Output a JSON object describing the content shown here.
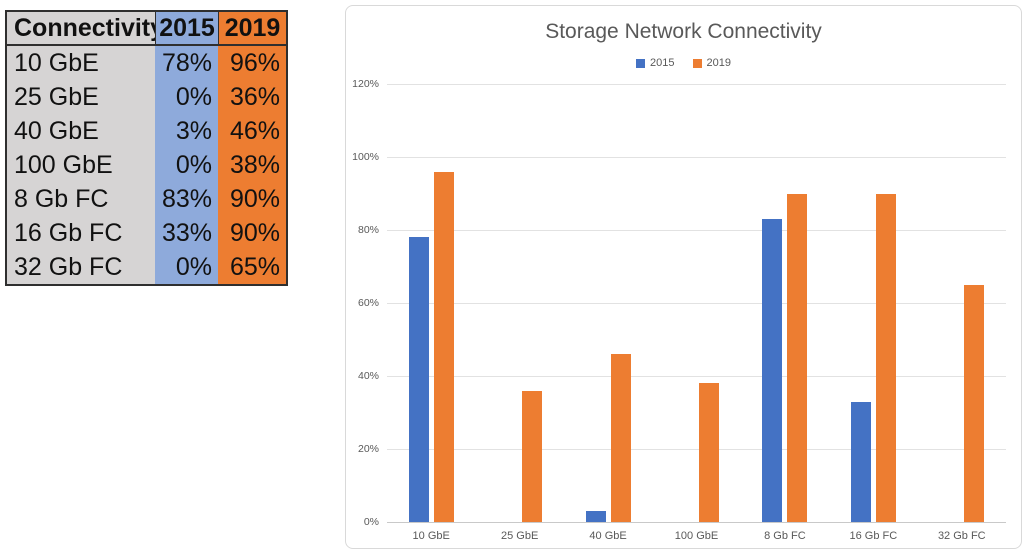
{
  "table": {
    "header": {
      "connectivity": "Connectivity",
      "y2015": "2015",
      "y2019": "2019"
    },
    "rows": [
      {
        "label": "10 GbE",
        "v2015": "78%",
        "v2019": "96%"
      },
      {
        "label": "25 GbE",
        "v2015": "0%",
        "v2019": "36%"
      },
      {
        "label": "40 GbE",
        "v2015": "3%",
        "v2019": "46%"
      },
      {
        "label": "100 GbE",
        "v2015": "0%",
        "v2019": "38%"
      },
      {
        "label": "8 Gb FC",
        "v2015": "83%",
        "v2019": "90%"
      },
      {
        "label": "16 Gb FC",
        "v2015": "33%",
        "v2019": "90%"
      },
      {
        "label": "32 Gb FC",
        "v2015": "0%",
        "v2019": "65%"
      }
    ],
    "colors": {
      "label_col_bg": "#d6d4d4",
      "col_2015_bg": "#8eaadb",
      "col_2019_bg": "#ed7d31",
      "border": "#2f2f2f",
      "text": "#111111"
    }
  },
  "chart_data": {
    "type": "bar",
    "title": "Storage Network Connectivity",
    "categories": [
      "10 GbE",
      "25 GbE",
      "40 GbE",
      "100 GbE",
      "8 Gb FC",
      "16 Gb FC",
      "32 Gb FC"
    ],
    "series": [
      {
        "name": "2015",
        "color": "#4472c4",
        "values": [
          78,
          0,
          3,
          0,
          83,
          33,
          0
        ]
      },
      {
        "name": "2019",
        "color": "#ed7d31",
        "values": [
          96,
          36,
          46,
          38,
          90,
          90,
          65
        ]
      }
    ],
    "xlabel": "",
    "ylabel": "",
    "ylim": [
      0,
      120
    ],
    "ytick_step": 20,
    "ytick_labels": [
      "0%",
      "20%",
      "40%",
      "60%",
      "80%",
      "100%",
      "120%"
    ],
    "grid": true,
    "legend_position": "top-center",
    "text_color": "#595959"
  }
}
